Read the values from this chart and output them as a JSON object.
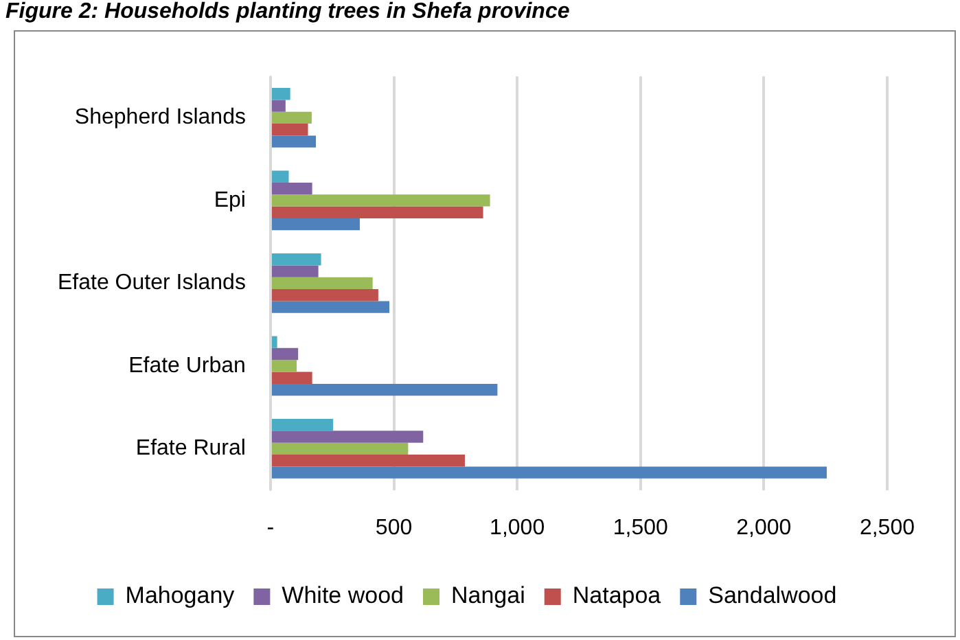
{
  "chart_data": {
    "type": "bar",
    "orientation": "horizontal",
    "title": "Figure 2: Households planting trees in Shefa province",
    "categories": [
      "Shepherd Islands",
      "Epi",
      "Efate Outer Islands",
      "Efate Urban",
      "Efate Rural"
    ],
    "series": [
      {
        "name": "Mahogany",
        "color": "#4bacc6",
        "values": [
          80,
          74,
          205,
          27,
          254
        ]
      },
      {
        "name": "White wood",
        "color": "#8064a2",
        "values": [
          61,
          169,
          194,
          112,
          619
        ]
      },
      {
        "name": "Nangai",
        "color": "#9bbb59",
        "values": [
          167,
          890,
          414,
          106,
          558
        ]
      },
      {
        "name": "Natapoa",
        "color": "#c0504d",
        "values": [
          152,
          862,
          437,
          169,
          788
        ]
      },
      {
        "name": "Sandalwood",
        "color": "#4f81bd",
        "values": [
          184,
          362,
          482,
          920,
          2255
        ]
      }
    ],
    "xlim": [
      0,
      2500
    ],
    "xticks": [
      {
        "value": 0,
        "label": "-"
      },
      500,
      {
        "value": 1000,
        "label": "1,000"
      },
      {
        "value": 1500,
        "label": "1,500"
      },
      {
        "value": 2000,
        "label": "2,000"
      },
      {
        "value": 2500,
        "label": "2,500"
      }
    ],
    "grid": "x",
    "legend": "bottom"
  }
}
